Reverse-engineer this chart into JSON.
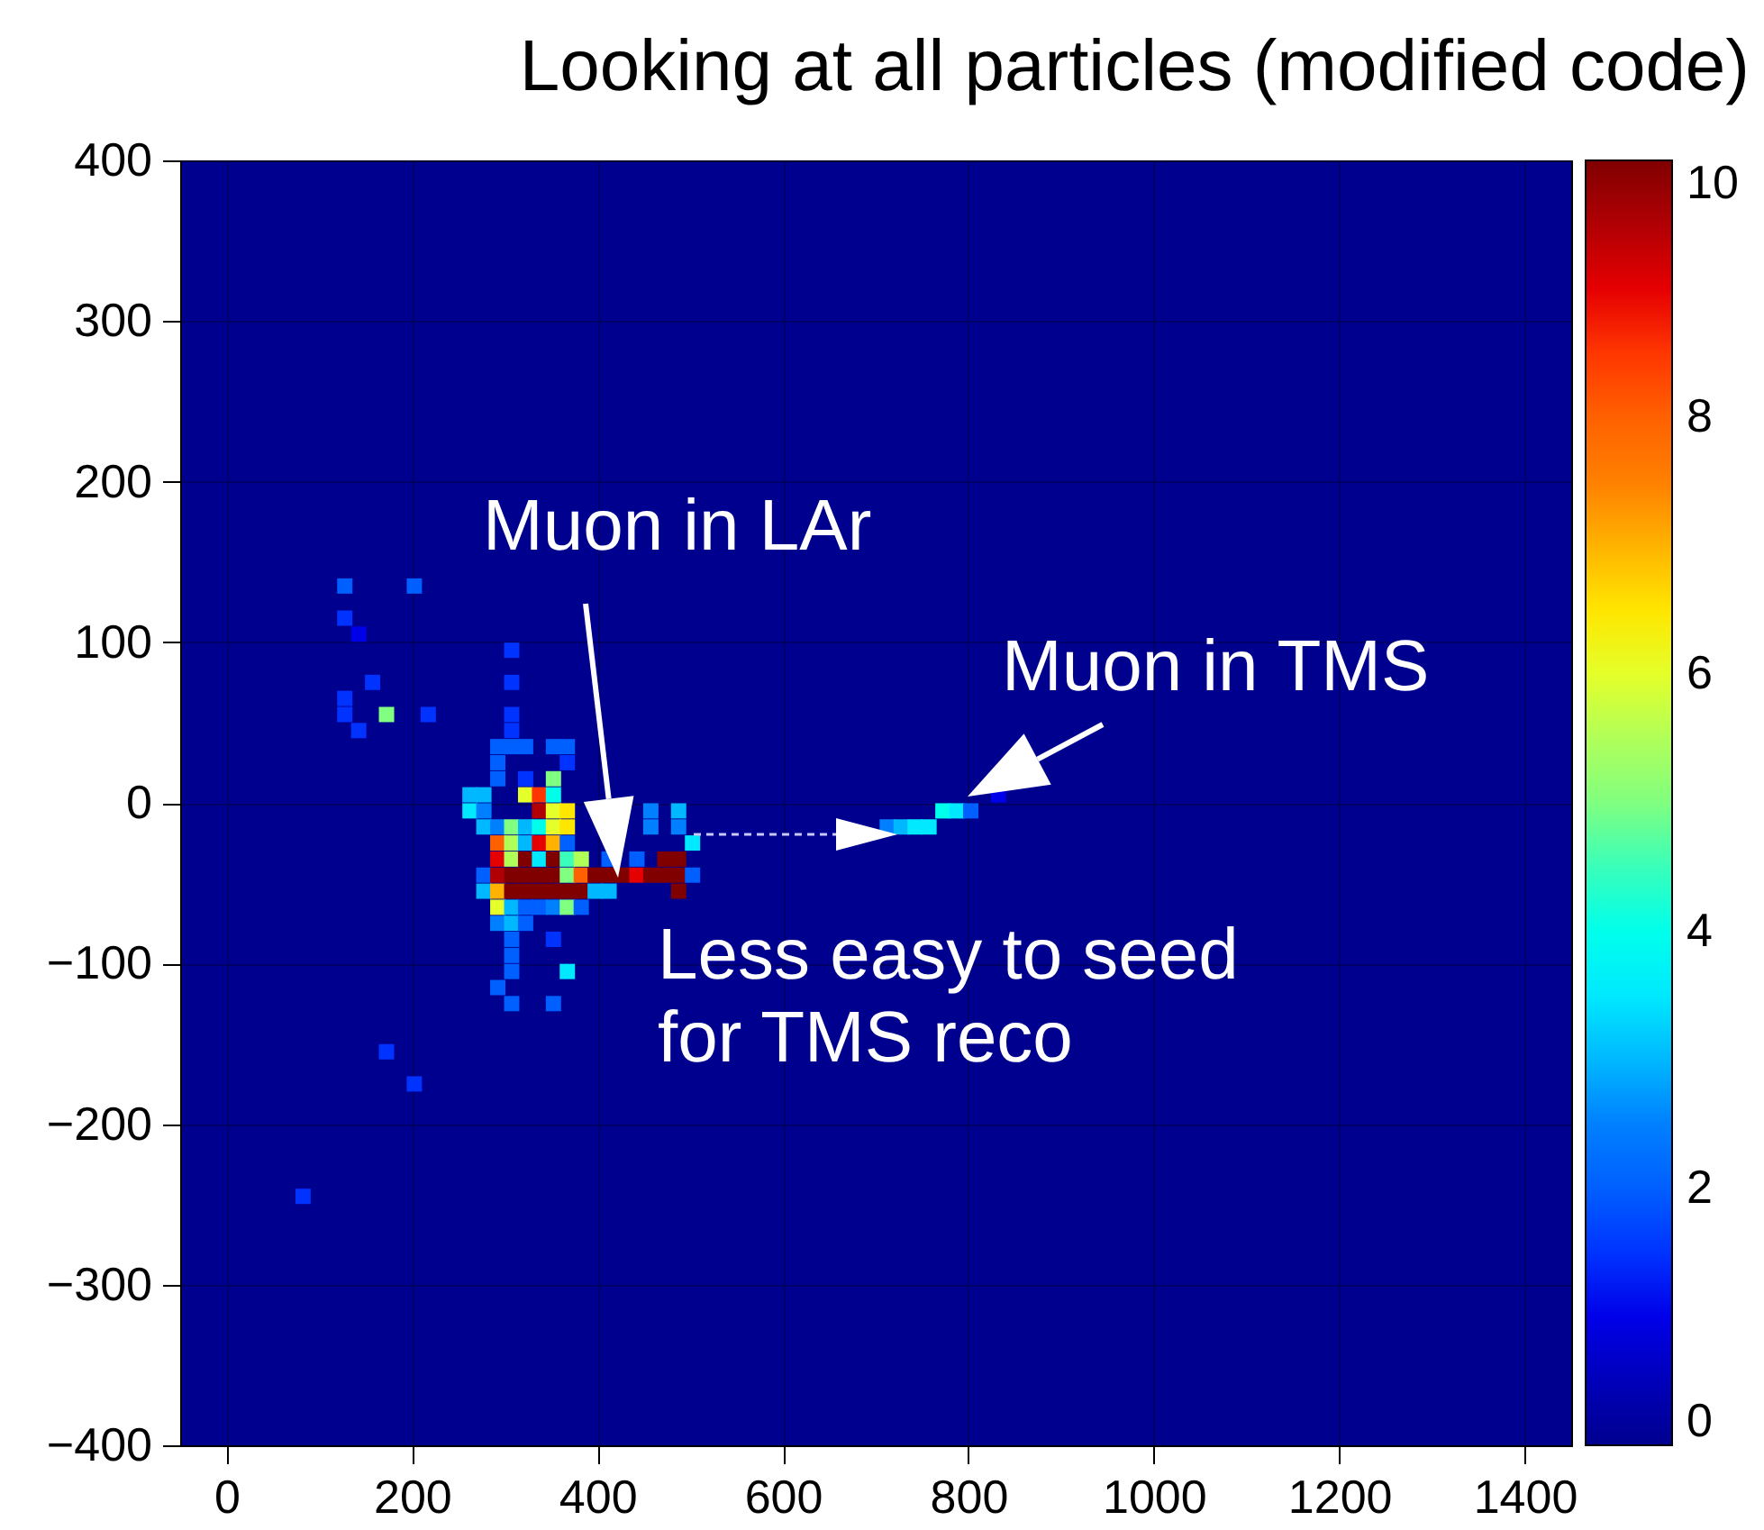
{
  "chart_data": {
    "type": "scatter",
    "title": "Looking at all particles (modified code)",
    "marker": "square",
    "x": [
      127.5,
      202.5,
      127.5,
      142.5,
      157.5,
      127.5,
      127.5,
      142.5,
      172.5,
      217.5,
      307.5,
      307.5,
      307.5,
      307.5,
      292.5,
      307.5,
      322.5,
      352.5,
      367.5,
      292.5,
      367.5,
      292.5,
      322.5,
      352.5,
      262.5,
      277.5,
      322.5,
      337.5,
      352.5,
      262.5,
      277.5,
      337.5,
      352.5,
      367.5,
      457.5,
      487.5,
      277.5,
      292.5,
      307.5,
      322.5,
      337.5,
      352.5,
      367.5,
      457.5,
      487.5,
      502.5,
      292.5,
      307.5,
      322.5,
      337.5,
      352.5,
      367.5,
      292.5,
      307.5,
      322.5,
      337.5,
      352.5,
      367.5,
      382.5,
      412.5,
      442.5,
      472.5,
      487.5,
      277.5,
      292.5,
      307.5,
      322.5,
      337.5,
      352.5,
      367.5,
      382.5,
      397.5,
      412.5,
      427.5,
      442.5,
      457.5,
      472.5,
      487.5,
      502.5,
      277.5,
      292.5,
      307.5,
      322.5,
      337.5,
      352.5,
      367.5,
      382.5,
      397.5,
      412.5,
      487.5,
      292.5,
      307.5,
      322.5,
      337.5,
      352.5,
      367.5,
      382.5,
      292.5,
      307.5,
      322.5,
      307.5,
      352.5,
      307.5,
      307.5,
      367.5,
      292.5,
      307.5,
      352.5,
      172.5,
      202.5,
      82.5,
      712.5,
      727.5,
      742.5,
      757.5,
      772.5,
      787.5,
      802.5,
      832.5
    ],
    "values": [
      135,
      135,
      115,
      105,
      75,
      65,
      55,
      45,
      55,
      55,
      95,
      75,
      55,
      45,
      35,
      35,
      35,
      35,
      35,
      25,
      25,
      15,
      15,
      15,
      5,
      5,
      5,
      5,
      5,
      -5,
      -5,
      -5,
      -5,
      -5,
      -5,
      -5,
      -15,
      -15,
      -15,
      -15,
      -15,
      -15,
      -15,
      -15,
      -15,
      -25,
      -25,
      -25,
      -25,
      -25,
      -25,
      -25,
      -35,
      -35,
      -35,
      -35,
      -35,
      -35,
      -35,
      -35,
      -35,
      -35,
      -35,
      -45,
      -45,
      -45,
      -45,
      -45,
      -45,
      -45,
      -45,
      -45,
      -45,
      -45,
      -45,
      -45,
      -45,
      -45,
      -45,
      -55,
      -55,
      -55,
      -55,
      -55,
      -55,
      -55,
      -55,
      -55,
      -55,
      -55,
      -65,
      -65,
      -65,
      -65,
      -65,
      -65,
      -65,
      -75,
      -75,
      -75,
      -85,
      -85,
      -95,
      -105,
      -105,
      -115,
      -125,
      -125,
      -155,
      -175,
      -245,
      -15,
      -15,
      -15,
      -15,
      -5,
      -5,
      -5,
      5
    ],
    "cvalues": [
      2,
      2,
      1.5,
      1,
      1.5,
      1.5,
      1.5,
      1.5,
      5,
      1.5,
      1.5,
      1.5,
      1.5,
      1.5,
      2,
      2,
      2,
      2,
      2,
      2,
      1.5,
      2,
      1.5,
      5,
      3,
      3,
      6,
      8.5,
      4,
      3.5,
      2.5,
      9.5,
      6,
      6.5,
      2.5,
      3,
      3,
      2.5,
      5,
      3,
      4,
      6,
      6.5,
      2.5,
      2.5,
      3.5,
      8,
      5.5,
      3,
      9,
      7,
      2,
      9,
      5.5,
      10,
      3.5,
      10,
      4.5,
      5.5,
      2,
      2,
      10,
      10,
      2,
      9.5,
      10,
      10,
      10,
      10,
      5,
      8,
      10,
      10,
      10,
      9,
      10,
      10,
      10,
      2,
      3,
      7,
      10,
      10,
      10,
      10,
      10,
      10,
      3,
      3,
      10,
      6,
      3,
      2,
      2,
      2.5,
      5,
      2,
      2.5,
      3,
      2,
      2,
      1.5,
      2,
      2,
      3.5,
      2,
      2,
      2,
      1.5,
      1.5,
      1.5,
      2.5,
      3,
      3.5,
      3.5,
      4,
      3.5,
      2,
      1
    ],
    "xlim": [
      -50,
      1450
    ],
    "ylim": [
      -400,
      400
    ],
    "xticks": [
      0,
      200,
      400,
      600,
      800,
      1000,
      1200,
      1400
    ],
    "yticks": [
      {
        "value": -400,
        "label": "−400"
      },
      {
        "value": -300,
        "label": "−300"
      },
      {
        "value": -200,
        "label": "−200"
      },
      {
        "value": -100,
        "label": "−100"
      },
      0,
      100,
      200,
      300,
      400
    ],
    "clim": [
      0,
      10
    ],
    "cticks": [
      0,
      2,
      4,
      6,
      8,
      10
    ],
    "grid": true,
    "annotations": [
      "Muon in LAr",
      "Muon in TMS",
      "Less easy to seed\nfor TMS reco"
    ]
  }
}
